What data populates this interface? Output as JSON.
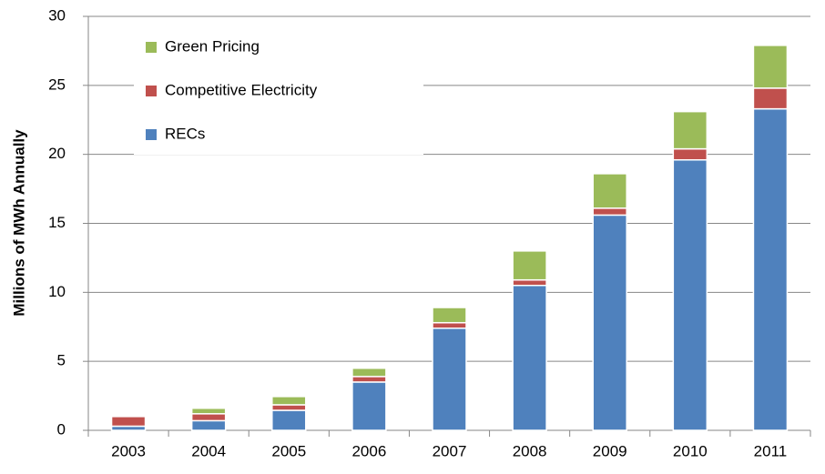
{
  "chart_data": {
    "type": "stacked_bar",
    "y_axis_label": "Millions of MWh Annually",
    "categories": [
      "2003",
      "2004",
      "2005",
      "2006",
      "2007",
      "2008",
      "2009",
      "2010",
      "2011"
    ],
    "series": [
      {
        "name": "RECs",
        "color": "#4f81bd",
        "values": [
          0.3,
          0.7,
          1.45,
          3.5,
          7.4,
          10.5,
          15.6,
          19.6,
          23.3
        ]
      },
      {
        "name": "Competitive Electricity",
        "color": "#c0504d",
        "values": [
          0.7,
          0.5,
          0.4,
          0.4,
          0.4,
          0.4,
          0.5,
          0.8,
          1.5
        ]
      },
      {
        "name": "Green Pricing",
        "color": "#9bbb59",
        "values": [
          0,
          0.4,
          0.6,
          0.6,
          1.1,
          2.1,
          2.5,
          2.7,
          3.1
        ]
      }
    ],
    "ylim": [
      0,
      30
    ],
    "yticks": [
      0,
      5,
      10,
      15,
      20,
      25,
      30
    ],
    "grid": true,
    "legend": "upper left"
  }
}
